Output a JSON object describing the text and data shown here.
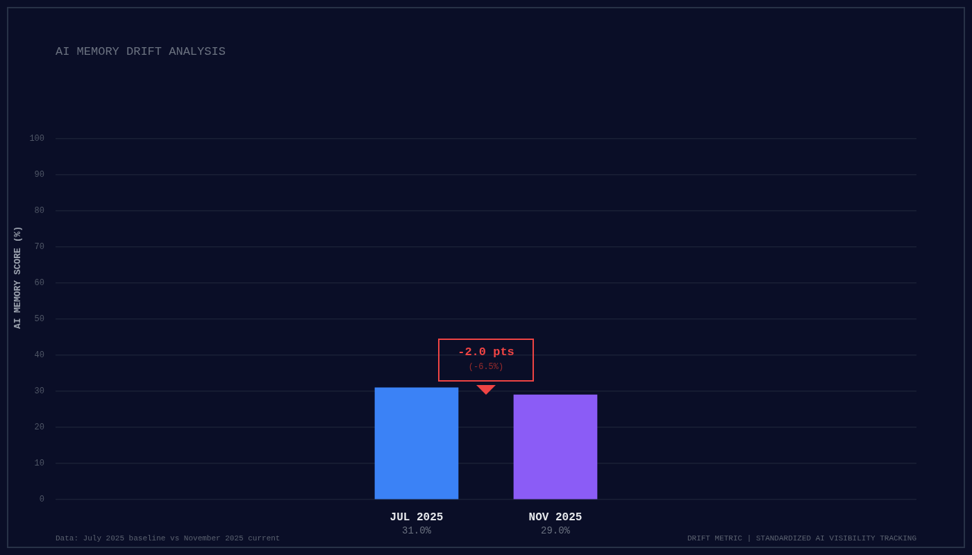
{
  "chart_data": {
    "type": "bar",
    "subtitle": "AI MEMORY DRIFT ANALYSIS",
    "ylabel": "AI MEMORY SCORE (%)",
    "categories": [
      "JUL 2025",
      "NOV 2025"
    ],
    "values": [
      31,
      29
    ],
    "colors": [
      "#3b82f6",
      "#8b5cf6"
    ],
    "value_labels": [
      "31.0%",
      "29.0%"
    ],
    "ylim": [
      0,
      100
    ],
    "yticks": [
      0,
      10,
      20,
      30,
      40,
      50,
      60,
      70,
      80,
      90,
      100
    ],
    "grid": "y",
    "annotations": [
      "-2.0 pts",
      "(-6.5%)",
      "Data: July 2025 baseline vs November 2025 current",
      "DRIFT METRIC | STANDARDIZED AI VISIBILITY TRACKING"
    ]
  }
}
